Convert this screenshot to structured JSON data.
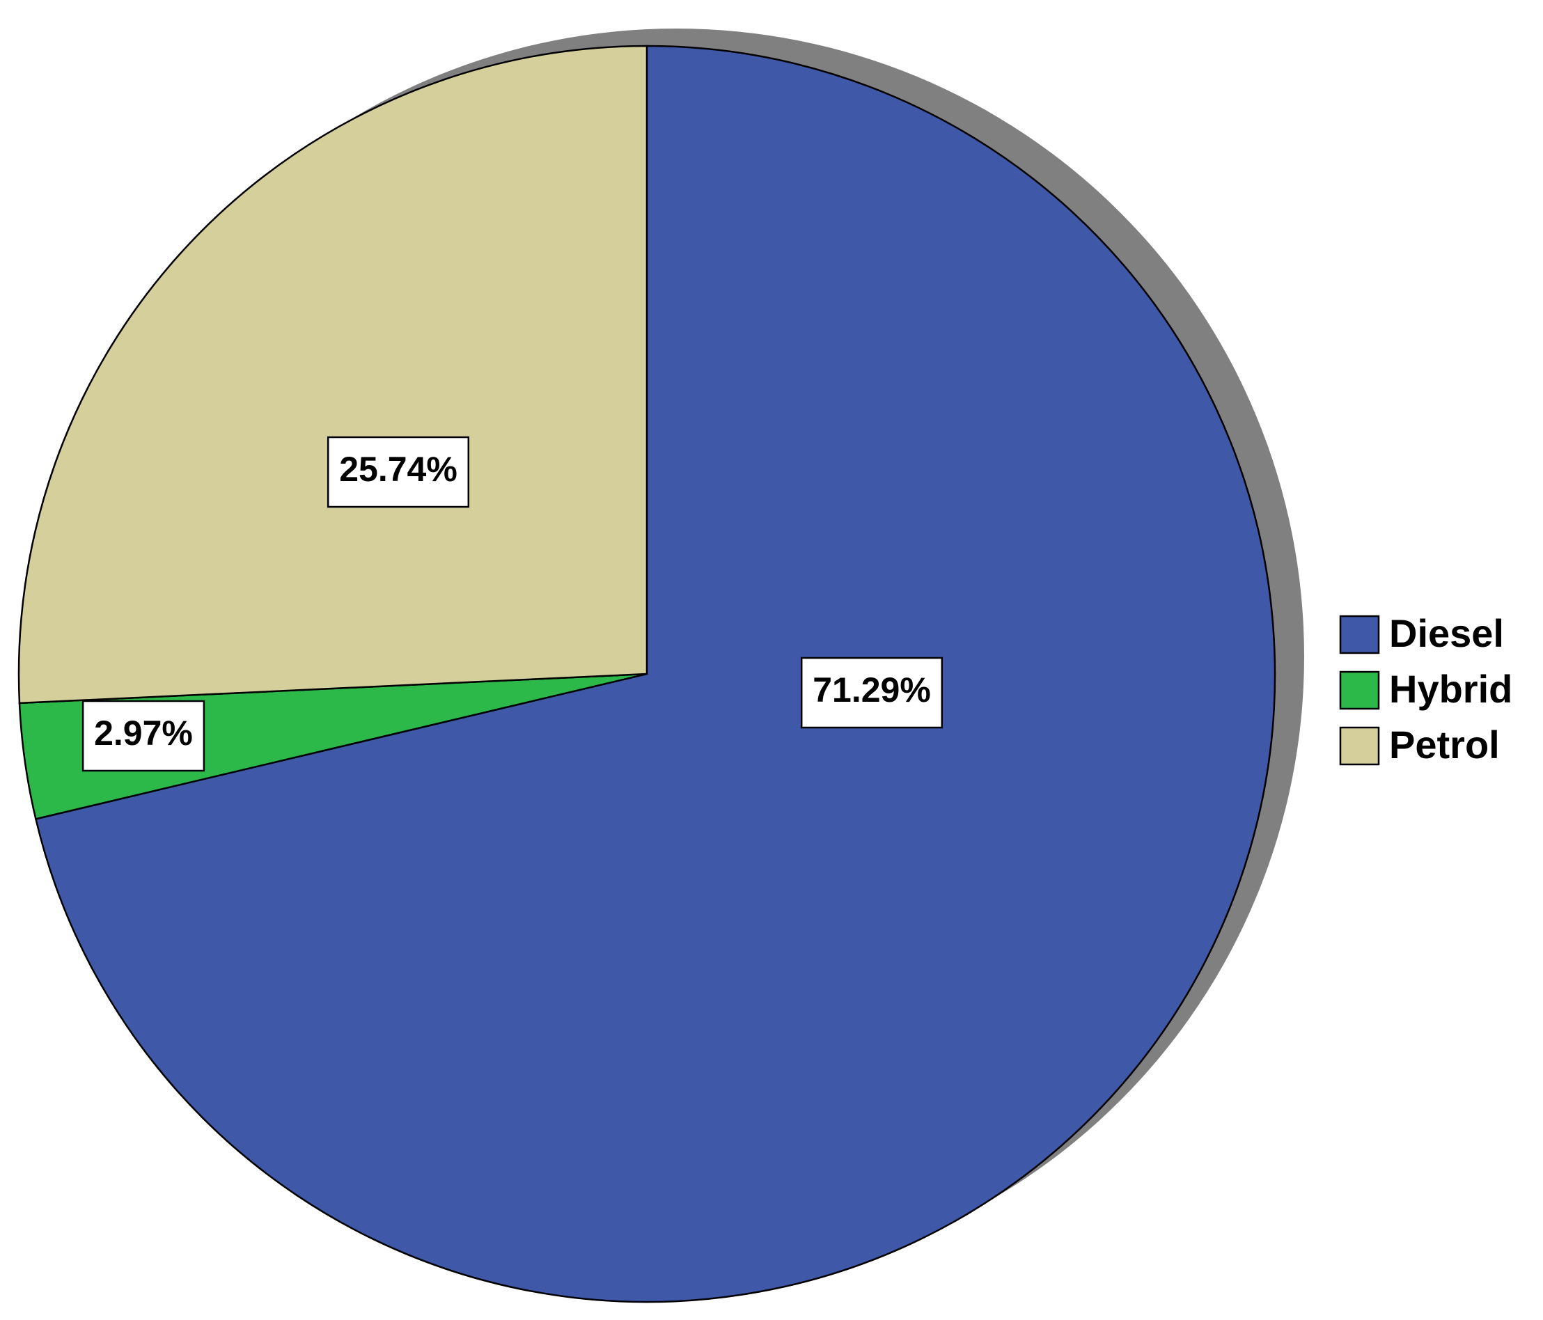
{
  "chart_data": {
    "type": "pie",
    "categories": [
      "Diesel",
      "Hybrid",
      "Petrol"
    ],
    "values": [
      71.29,
      2.97,
      25.74
    ],
    "value_labels": [
      "71.29%",
      "2.97%",
      "25.74%"
    ],
    "colors": [
      "#3f58a8",
      "#2db84a",
      "#d4cf9b"
    ],
    "legend": "right"
  }
}
